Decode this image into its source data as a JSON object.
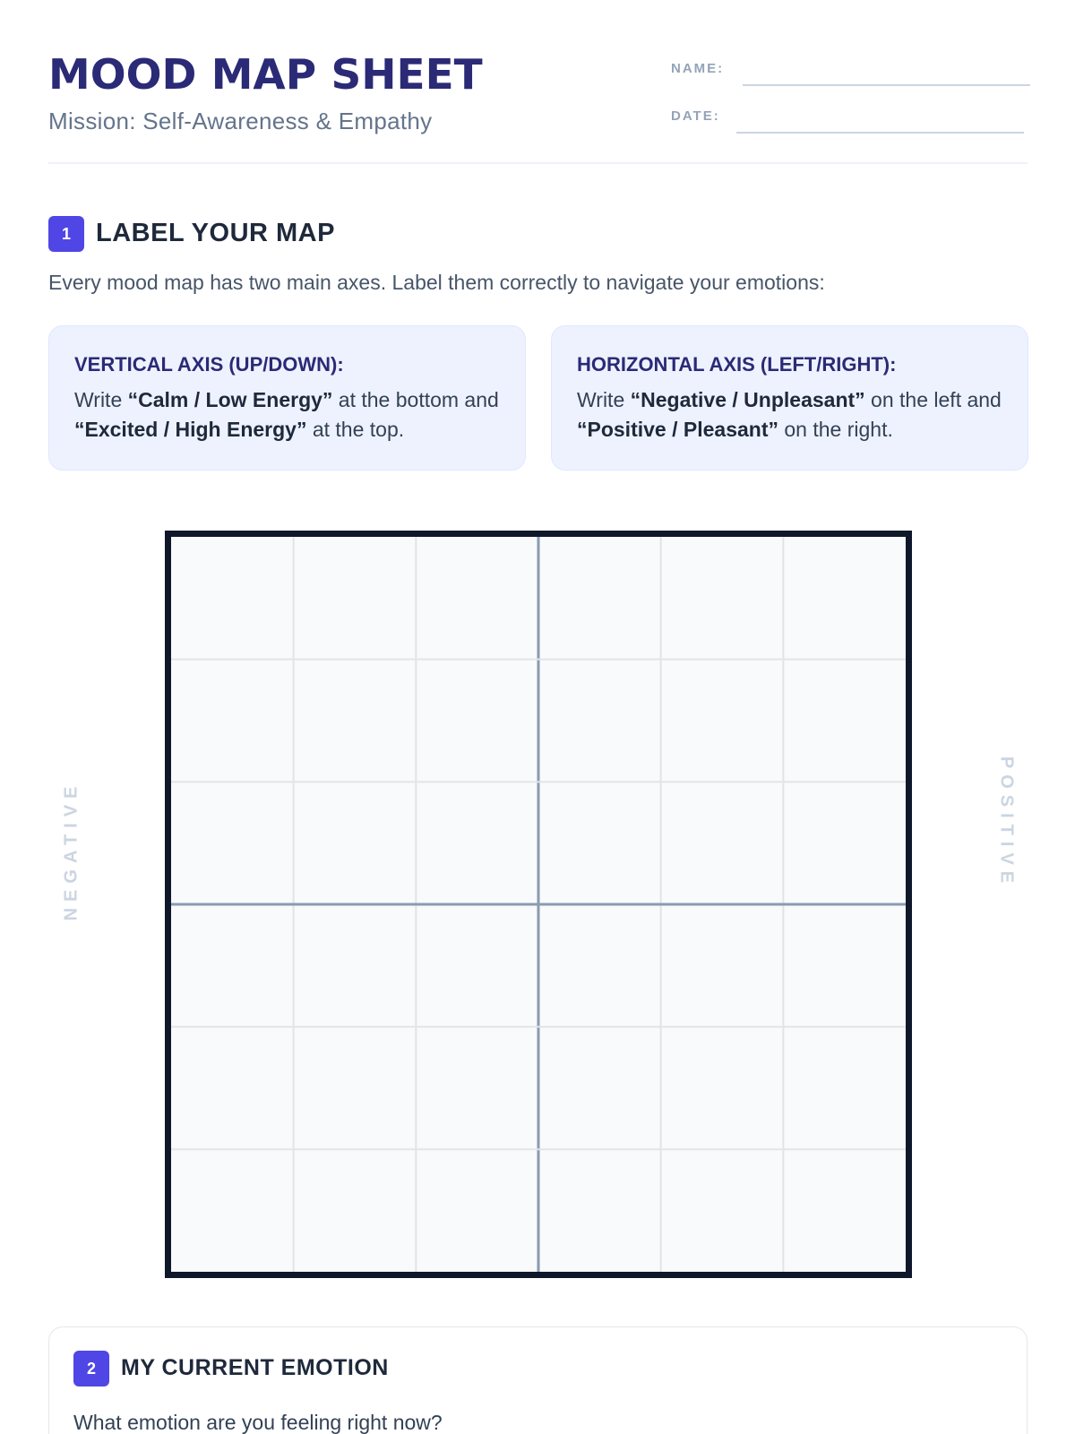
{
  "header": {
    "title": "MOOD MAP SHEET",
    "subtitle": "Mission: Self-Awareness & Empathy",
    "name_label": "NAME:",
    "date_label": "DATE:"
  },
  "section1": {
    "number": "1",
    "title": "LABEL YOUR MAP",
    "intro": "Every mood map has two main axes. Label them correctly to navigate your emotions:",
    "vertical": {
      "title": "VERTICAL AXIS (UP/DOWN):",
      "t1": "Write ",
      "b1": "“Calm / Low Energy”",
      "t2": " at the bottom and ",
      "b2": "“Excited / High Energy”",
      "t3": " at the top."
    },
    "horizontal": {
      "title": "HORIZONTAL AXIS (LEFT/RIGHT):",
      "t1": "Write ",
      "b1": "“Negative / Unpleasant”",
      "t2": " on the left and ",
      "b2": "“Positive / Pleasant”",
      "t3": " on the right."
    }
  },
  "grid": {
    "left_label": "NEGATIVE",
    "right_label": "POSITIVE",
    "rows": 6,
    "cols": 6,
    "cell_line_color": "#e2e4e8",
    "axis_line_color": "#8a9bb0",
    "border_color": "#0f172a"
  },
  "section2": {
    "number": "2",
    "title": "MY CURRENT EMOTION",
    "question": "What emotion are you feeling right now?"
  }
}
